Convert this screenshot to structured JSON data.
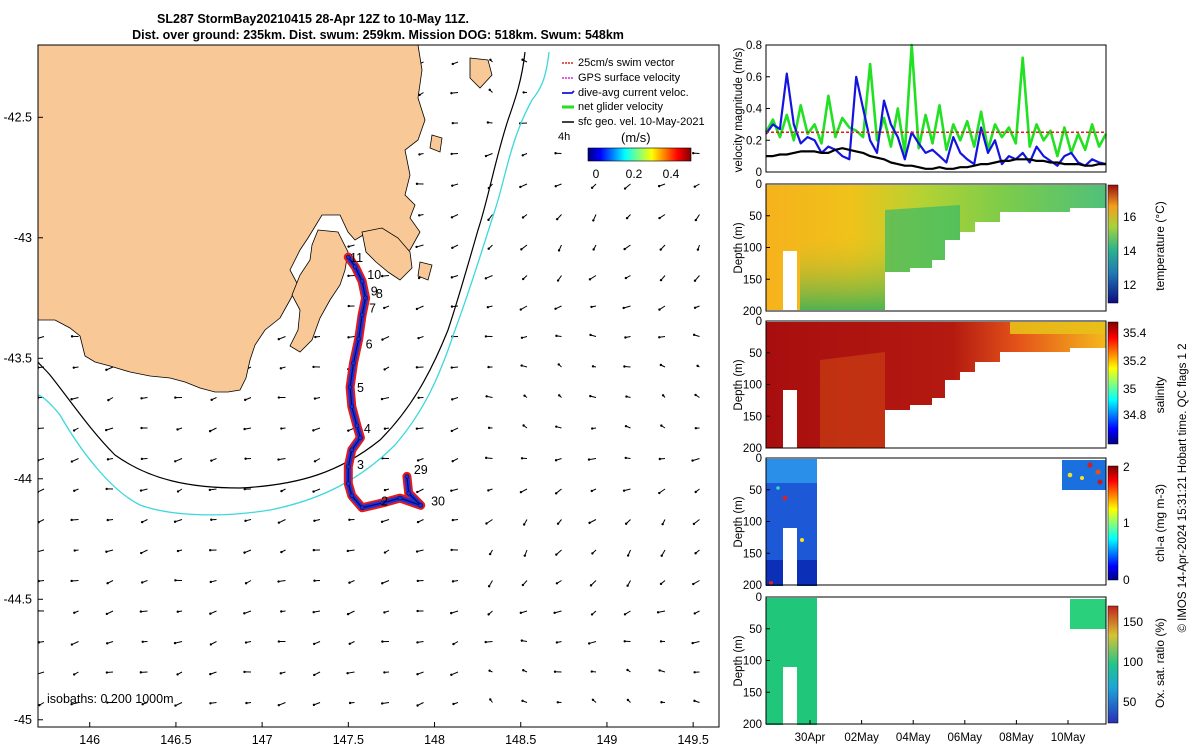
{
  "title": {
    "line1": "SL287 StormBay20210415 28-Apr 12Z to 10-May 11Z.",
    "line2": "Dist. over ground: 235km. Dist. swum: 259km. Mission DOG: 518km. Swum: 548km"
  },
  "footer": "© IMOS 14-Apr-2024 15:31:21 Hobart time. QC flags 1  2",
  "colors": {
    "land": "#f9c897",
    "cyan_isobath": "#3dd8dd",
    "swim_vector": "#e0201b",
    "gps": "#e020e0",
    "current": "#1414e0",
    "net_glider": "#22e022",
    "sfc_geo": "#000000",
    "track_red": "#e41b1b",
    "track_blue": "#1a2fe0"
  },
  "chart_data": [
    {
      "type": "map",
      "name": "glider track map",
      "xlim": [
        145.7,
        149.65
      ],
      "ylim": [
        -45.03,
        -42.2
      ],
      "x_ticks": [
        146,
        146.5,
        147,
        147.5,
        148,
        148.5,
        149,
        149.5
      ],
      "x_tick_labels": [
        "146",
        "146.5",
        "147",
        "147.5",
        "148",
        "148.5",
        "149",
        "149.5"
      ],
      "y_ticks": [
        -42.5,
        -43,
        -43.5,
        -44,
        -44.5,
        -45
      ],
      "y_tick_labels": [
        "-42.5",
        "-43",
        "-43.5",
        "-44",
        "-44.5",
        "-45"
      ],
      "legend": {
        "position": "top-right",
        "entries": [
          "25cm/s swim vector",
          "GPS surface velocity",
          "dive-avg current veloc.",
          "net glider velocity",
          "sfc geo. vel. 10-May-2021"
        ],
        "extra_label": "4h"
      },
      "colorbar": {
        "title": "(m/s)",
        "ticks": [
          "0",
          "0.2",
          "0.4"
        ],
        "range": [
          0,
          0.5
        ]
      },
      "isobath_label": "isobaths: 0   200  1000m",
      "track": [
        {
          "lon": 147.5,
          "lat": -43.08
        },
        {
          "lon": 147.54,
          "lat": -43.12
        },
        {
          "lon": 147.58,
          "lat": -43.18
        },
        {
          "lon": 147.6,
          "lat": -43.25
        },
        {
          "lon": 147.58,
          "lat": -43.32
        },
        {
          "lon": 147.56,
          "lat": -43.42
        },
        {
          "lon": 147.53,
          "lat": -43.52
        },
        {
          "lon": 147.51,
          "lat": -43.62
        },
        {
          "lon": 147.52,
          "lat": -43.7
        },
        {
          "lon": 147.55,
          "lat": -43.78
        },
        {
          "lon": 147.57,
          "lat": -43.83
        },
        {
          "lon": 147.52,
          "lat": -43.88
        },
        {
          "lon": 147.5,
          "lat": -43.95
        },
        {
          "lon": 147.5,
          "lat": -44.02
        },
        {
          "lon": 147.52,
          "lat": -44.07
        },
        {
          "lon": 147.58,
          "lat": -44.12
        },
        {
          "lon": 147.7,
          "lat": -44.1
        },
        {
          "lon": 147.8,
          "lat": -44.08
        },
        {
          "lon": 147.92,
          "lat": -44.11
        },
        {
          "lon": 147.85,
          "lat": -44.06
        },
        {
          "lon": 147.84,
          "lat": -43.99
        }
      ],
      "day_labels": [
        {
          "text": "11",
          "lon": 147.51,
          "lat": -43.1
        },
        {
          "text": "10",
          "lon": 147.61,
          "lat": -43.17
        },
        {
          "text": "9",
          "lon": 147.63,
          "lat": -43.24
        },
        {
          "text": "8",
          "lon": 147.66,
          "lat": -43.25
        },
        {
          "text": "7",
          "lon": 147.62,
          "lat": -43.31
        },
        {
          "text": "6",
          "lon": 147.6,
          "lat": -43.46
        },
        {
          "text": "5",
          "lon": 147.55,
          "lat": -43.64
        },
        {
          "text": "4",
          "lon": 147.59,
          "lat": -43.81
        },
        {
          "text": "3",
          "lon": 147.55,
          "lat": -43.96
        },
        {
          "text": "2",
          "lon": 147.69,
          "lat": -44.11
        },
        {
          "text": "29",
          "lon": 147.88,
          "lat": -43.98
        },
        {
          "text": "30",
          "lon": 147.98,
          "lat": -44.11
        }
      ]
    },
    {
      "type": "line",
      "name": "velocity magnitude",
      "ylabel": "velocity magnitude (m/s)",
      "ylim": [
        0,
        0.8
      ],
      "y_ticks": [
        "0",
        "0.2",
        "0.4",
        "0.6",
        "0.8"
      ],
      "series": [
        {
          "name": "net glider velocity",
          "color": "#22e022",
          "values": [
            0.25,
            0.33,
            0.22,
            0.36,
            0.2,
            0.42,
            0.24,
            0.3,
            0.18,
            0.48,
            0.22,
            0.34,
            0.28,
            0.26,
            0.22,
            0.68,
            0.2,
            0.34,
            0.16,
            0.4,
            0.12,
            0.8,
            0.15,
            0.36,
            0.18,
            0.42,
            0.14,
            0.3,
            0.2,
            0.32,
            0.16,
            0.38,
            0.14,
            0.3,
            0.22,
            0.28,
            0.18,
            0.72,
            0.16,
            0.3,
            0.2,
            0.26,
            0.1,
            0.28,
            0.12,
            0.24,
            0.14,
            0.3,
            0.16,
            0.24
          ]
        },
        {
          "name": "dive-avg current",
          "color": "#1414e0",
          "values": [
            0.24,
            0.3,
            0.27,
            0.62,
            0.3,
            0.18,
            0.22,
            0.2,
            0.12,
            0.16,
            0.14,
            0.1,
            0.08,
            0.6,
            0.4,
            0.2,
            0.12,
            0.45,
            0.3,
            0.22,
            0.08,
            0.25,
            0.18,
            0.12,
            0.14,
            0.1,
            0.06,
            0.22,
            0.12,
            0.08,
            0.05,
            0.28,
            0.12,
            0.2,
            0.05,
            0.1,
            0.08,
            0.12,
            0.06,
            0.16,
            0.1,
            0.07,
            0.04,
            0.1,
            0.12,
            0.06,
            0.04,
            0.08,
            0.06,
            0.05
          ]
        },
        {
          "name": "sfc geo. vel.",
          "color": "#000000",
          "values": [
            0.1,
            0.1,
            0.11,
            0.11,
            0.12,
            0.13,
            0.13,
            0.13,
            0.12,
            0.12,
            0.14,
            0.15,
            0.14,
            0.13,
            0.12,
            0.1,
            0.09,
            0.08,
            0.06,
            0.05,
            0.04,
            0.04,
            0.03,
            0.02,
            0.02,
            0.03,
            0.02,
            0.02,
            0.03,
            0.03,
            0.04,
            0.05,
            0.05,
            0.06,
            0.07,
            0.07,
            0.08,
            0.08,
            0.08,
            0.07,
            0.07,
            0.06,
            0.06,
            0.05,
            0.05,
            0.05,
            0.04,
            0.04,
            0.05,
            0.05
          ]
        },
        {
          "name": "25cm/s swim vector",
          "color": "#e0201b",
          "values": [
            0.25,
            0.25
          ]
        }
      ]
    },
    {
      "type": "heatmap",
      "name": "temperature section",
      "ylabel": "Depth (m)",
      "colorbar_label": "temperature (°C)",
      "colorbar_ticks": [
        "12",
        "14",
        "16"
      ],
      "colorbar_range": [
        10.5,
        18
      ],
      "y_ticks": [
        "0",
        "50",
        "100",
        "150",
        "200"
      ]
    },
    {
      "type": "heatmap",
      "name": "salinity section",
      "ylabel": "Depth (m)",
      "colorbar_label": "salinity",
      "colorbar_ticks": [
        "34.8",
        "35",
        "35.2",
        "35.4"
      ],
      "colorbar_range": [
        34.65,
        35.45
      ],
      "y_ticks": [
        "0",
        "50",
        "100",
        "150",
        "200"
      ]
    },
    {
      "type": "heatmap",
      "name": "chlorophyll section",
      "ylabel": "Depth (m)",
      "colorbar_label": "chl-a (mg m-3)",
      "colorbar_ticks": [
        "0",
        "1",
        "2"
      ],
      "colorbar_range": [
        0,
        2
      ],
      "y_ticks": [
        "0",
        "50",
        "100",
        "150",
        "200"
      ]
    },
    {
      "type": "heatmap",
      "name": "oxygen section",
      "ylabel": "Depth (m)",
      "colorbar_label": "Ox. sat. ratio (%)",
      "colorbar_ticks": [
        "50",
        "100",
        "150"
      ],
      "colorbar_range": [
        20,
        175
      ],
      "y_ticks": [
        "0",
        "50",
        "100",
        "150",
        "200"
      ],
      "x_tick_labels": [
        "30Apr",
        "02May",
        "04May",
        "06May",
        "08May",
        "10May"
      ]
    }
  ]
}
